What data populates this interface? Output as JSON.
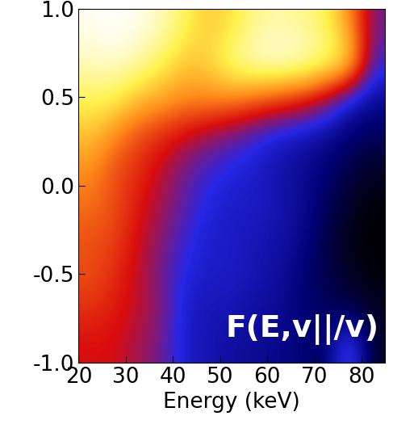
{
  "chart_data": {
    "type": "heatmap",
    "x_label": "Energy (keV)",
    "annotation": "F(E,v||/v)",
    "x": [
      22.5,
      27.5,
      32.5,
      37.5,
      42.5,
      47.5,
      52.5,
      57.5,
      62.5,
      67.5,
      72.5,
      77.5,
      82.5
    ],
    "y": [
      -0.9,
      -0.7,
      -0.5,
      -0.3,
      -0.1,
      0.1,
      0.3,
      0.5,
      0.7,
      0.9
    ],
    "cells": [
      [
        0.4,
        0.4,
        0.35,
        0.3,
        0.2,
        0.18,
        0.16,
        0.15,
        0.14,
        0.12,
        0.1,
        0.3,
        0.05
      ],
      [
        0.45,
        0.42,
        0.38,
        0.32,
        0.2,
        0.18,
        0.18,
        0.16,
        0.15,
        0.12,
        0.1,
        0.08,
        0.05
      ],
      [
        0.5,
        0.45,
        0.38,
        0.3,
        0.22,
        0.2,
        0.2,
        0.18,
        0.16,
        0.12,
        0.08,
        0.05,
        0.03
      ],
      [
        0.5,
        0.48,
        0.4,
        0.32,
        0.25,
        0.2,
        0.2,
        0.18,
        0.17,
        0.14,
        0.08,
        0.04,
        0.02
      ],
      [
        0.55,
        0.5,
        0.42,
        0.35,
        0.28,
        0.22,
        0.2,
        0.2,
        0.18,
        0.15,
        0.1,
        0.05,
        0.03
      ],
      [
        0.6,
        0.5,
        0.45,
        0.38,
        0.3,
        0.25,
        0.22,
        0.2,
        0.17,
        0.15,
        0.12,
        0.08,
        0.05
      ],
      [
        0.7,
        0.6,
        0.5,
        0.45,
        0.4,
        0.35,
        0.3,
        0.25,
        0.2,
        0.18,
        0.15,
        0.12,
        0.1
      ],
      [
        0.8,
        0.8,
        0.7,
        0.65,
        0.6,
        0.6,
        0.6,
        0.55,
        0.5,
        0.45,
        0.35,
        0.2,
        0.15
      ],
      [
        0.9,
        0.92,
        0.88,
        0.8,
        0.7,
        0.72,
        0.85,
        0.92,
        0.95,
        0.92,
        0.85,
        0.75,
        0.25
      ],
      [
        0.95,
        0.97,
        0.95,
        0.9,
        0.8,
        0.7,
        0.75,
        0.85,
        0.88,
        0.85,
        0.8,
        0.6,
        0.3
      ]
    ],
    "xlim": [
      20,
      85
    ],
    "xticks": [
      20,
      30,
      40,
      50,
      60,
      70,
      80
    ],
    "ylim": [
      -1,
      1
    ],
    "yticks": [
      {
        "value": -1,
        "label": "-1.0"
      },
      {
        "value": -0.5,
        "label": "-0.5"
      },
      {
        "value": 0,
        "label": "0.0"
      },
      {
        "value": 0.5,
        "label": "0.5"
      },
      {
        "value": 1,
        "label": "1.0"
      }
    ]
  }
}
